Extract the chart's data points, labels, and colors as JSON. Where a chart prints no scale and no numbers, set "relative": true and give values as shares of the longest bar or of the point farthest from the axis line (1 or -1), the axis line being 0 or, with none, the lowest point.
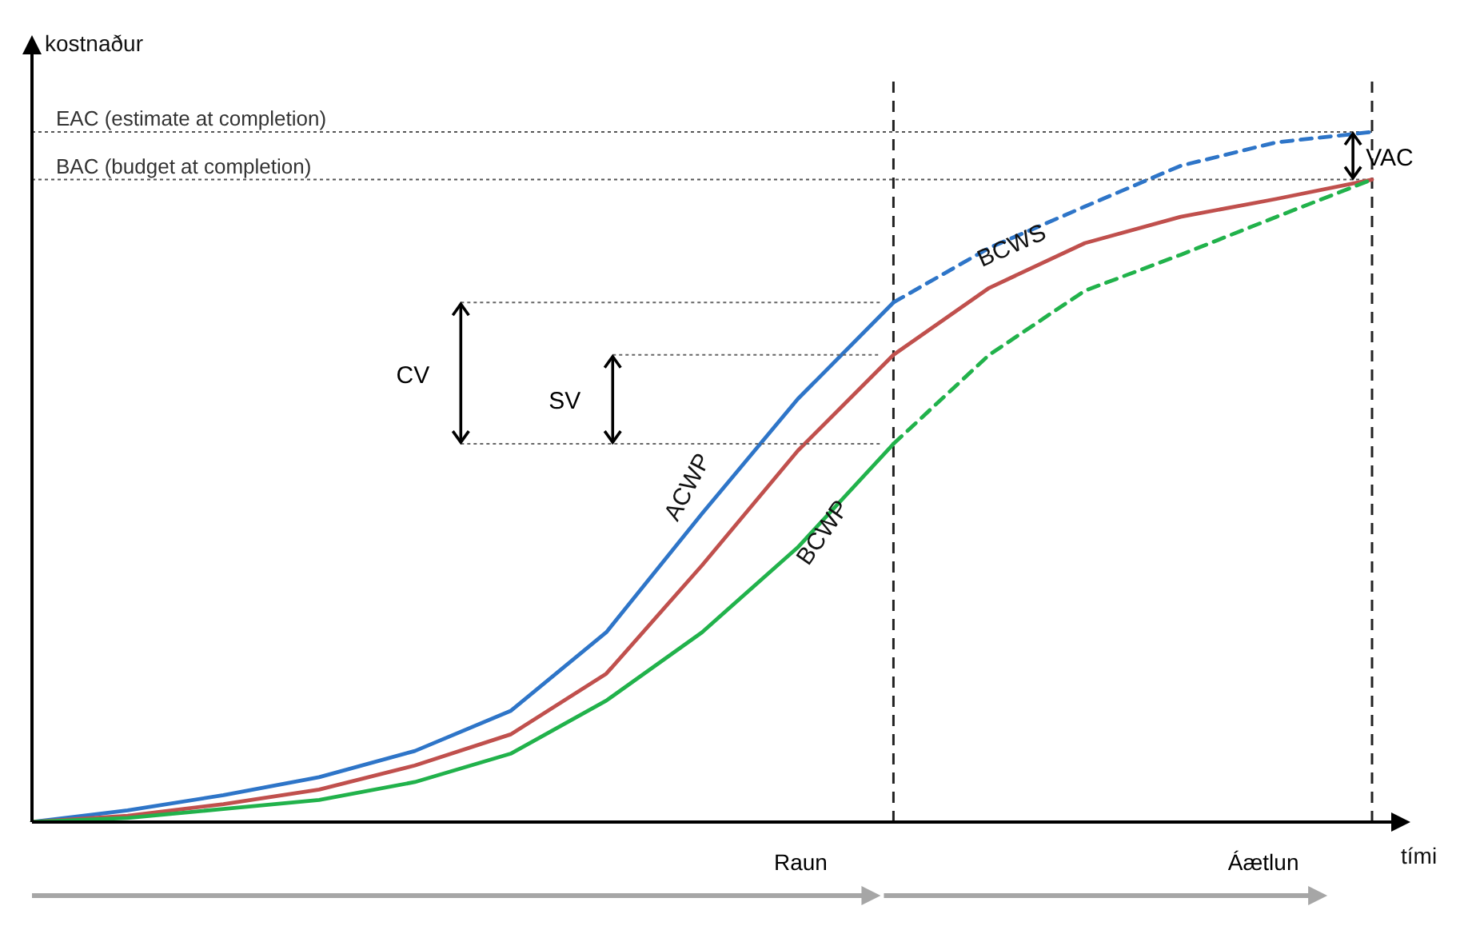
{
  "chart_data": {
    "type": "line",
    "relative": true,
    "xlabel": "tími",
    "ylabel": "kostnaður",
    "categories": [
      null,
      null,
      null,
      null,
      null,
      null,
      null,
      null,
      null,
      null,
      null,
      null,
      null,
      null,
      null
    ],
    "series": [
      {
        "name": "ACWP",
        "color": "#2e75c8",
        "line_style": "solid",
        "values": [
          0,
          0.017,
          0.039,
          0.065,
          0.103,
          0.161,
          0.275,
          0.447,
          0.613,
          0.753,
          null,
          null,
          null,
          null,
          null
        ]
      },
      {
        "color": "#2e75c8",
        "line_style": "dashed",
        "values": [
          null,
          null,
          null,
          null,
          null,
          null,
          null,
          null,
          null,
          0.753,
          0.832,
          0.892,
          0.951,
          0.985,
          1
        ]
      },
      {
        "name": "BCWS",
        "color": "#c0504d",
        "line_style": "solid",
        "values": [
          0,
          0.009,
          0.026,
          0.047,
          0.082,
          0.127,
          0.215,
          0.372,
          0.538,
          0.677,
          0.774,
          0.839,
          0.877,
          0.903,
          0.931
        ]
      },
      {
        "name": "BCWP",
        "color": "#21b24b",
        "line_style": "solid",
        "values": [
          0,
          0.006,
          0.019,
          0.032,
          0.058,
          0.099,
          0.176,
          0.275,
          0.398,
          0.548,
          null,
          null,
          null,
          null,
          null
        ]
      },
      {
        "color": "#21b24b",
        "line_style": "dashed",
        "values": [
          null,
          null,
          null,
          null,
          null,
          null,
          null,
          null,
          null,
          0.548,
          0.677,
          0.77,
          0.822,
          0.877,
          0.931
        ]
      }
    ],
    "ref_lines": [
      {
        "axis": "y",
        "value": 1,
        "label": "EAC (estimate at completion)",
        "color": "#555555",
        "line_style": "dotted"
      },
      {
        "axis": "y",
        "value": 0.931,
        "label": "BAC (budget at completion)",
        "color": "#555555",
        "line_style": "dotted"
      }
    ],
    "annotations": [
      "CV",
      "SV",
      "VAC",
      "Raun",
      "Áætlun"
    ],
    "grid": false,
    "legend": false,
    "marker": "none"
  }
}
